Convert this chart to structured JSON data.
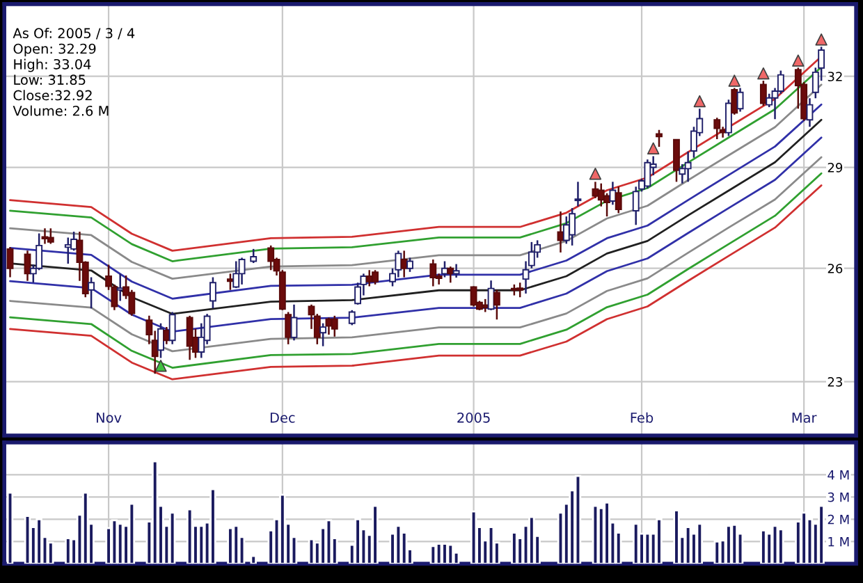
{
  "chart_data": [
    {
      "type": "candlestick",
      "x": [
        "2004-10-15",
        "2004-10-18",
        "2004-10-19",
        "2004-10-20",
        "2004-10-21",
        "2004-10-22",
        "2004-10-25",
        "2004-10-26",
        "2004-10-27",
        "2004-10-28",
        "2004-10-29",
        "2004-11-01",
        "2004-11-02",
        "2004-11-03",
        "2004-11-04",
        "2004-11-05",
        "2004-11-08",
        "2004-11-09",
        "2004-11-10",
        "2004-11-11",
        "2004-11-12",
        "2004-11-15",
        "2004-11-16",
        "2004-11-17",
        "2004-11-18",
        "2004-11-19",
        "2004-11-22",
        "2004-11-23",
        "2004-11-24",
        "2004-11-26",
        "2004-11-29",
        "2004-11-30",
        "2004-12-01",
        "2004-12-02",
        "2004-12-03",
        "2004-12-06",
        "2004-12-07",
        "2004-12-08",
        "2004-12-09",
        "2004-12-10",
        "2004-12-13",
        "2004-12-14",
        "2004-12-15",
        "2004-12-16",
        "2004-12-17",
        "2004-12-20",
        "2004-12-21",
        "2004-12-22",
        "2004-12-23",
        "2004-12-27",
        "2004-12-28",
        "2004-12-29",
        "2004-12-30",
        "2004-12-31",
        "2005-01-03",
        "2005-01-04",
        "2005-01-05",
        "2005-01-06",
        "2005-01-07",
        "2005-01-10",
        "2005-01-11",
        "2005-01-12",
        "2005-01-13",
        "2005-01-14",
        "2005-01-18",
        "2005-01-19",
        "2005-01-20",
        "2005-01-21",
        "2005-01-24",
        "2005-01-25",
        "2005-01-26",
        "2005-01-27",
        "2005-01-28",
        "2005-01-31",
        "2005-02-01",
        "2005-02-02",
        "2005-02-03",
        "2005-02-04",
        "2005-02-07",
        "2005-02-08",
        "2005-02-09",
        "2005-02-10",
        "2005-02-11",
        "2005-02-14",
        "2005-02-15",
        "2005-02-16",
        "2005-02-17",
        "2005-02-18",
        "2005-02-22",
        "2005-02-23",
        "2005-02-24",
        "2005-02-25",
        "2005-02-28",
        "2005-03-01",
        "2005-03-02",
        "2005-03-03",
        "2005-03-04"
      ],
      "ohlc": [
        [
          26.55,
          26.6,
          25.75,
          26.0
        ],
        [
          26.4,
          26.5,
          25.65,
          25.85
        ],
        [
          25.85,
          26.1,
          25.6,
          26.0
        ],
        [
          26.0,
          27.0,
          25.95,
          26.65
        ],
        [
          26.9,
          27.15,
          26.7,
          26.85
        ],
        [
          26.88,
          27.15,
          26.7,
          26.75
        ],
        [
          26.6,
          26.88,
          26.13,
          26.67
        ],
        [
          26.55,
          27.05,
          26.5,
          26.83
        ],
        [
          26.8,
          27.05,
          25.65,
          26.17
        ],
        [
          26.17,
          26.2,
          25.2,
          25.3
        ],
        [
          25.4,
          25.75,
          24.9,
          25.6
        ],
        [
          25.78,
          26.1,
          25.4,
          25.5
        ],
        [
          25.48,
          25.55,
          24.85,
          24.95
        ],
        [
          25.4,
          25.85,
          25.1,
          25.45
        ],
        [
          25.48,
          25.8,
          25.15,
          25.25
        ],
        [
          25.33,
          25.4,
          24.7,
          24.76
        ],
        [
          24.58,
          24.7,
          23.95,
          24.2
        ],
        [
          24.05,
          24.3,
          23.2,
          23.64
        ],
        [
          23.8,
          24.5,
          23.6,
          24.35
        ],
        [
          24.31,
          24.4,
          23.95,
          24.05
        ],
        [
          24.05,
          24.8,
          23.95,
          24.73
        ],
        [
          24.65,
          24.7,
          23.55,
          23.9
        ],
        [
          24.13,
          24.35,
          23.6,
          23.75
        ],
        [
          23.75,
          24.5,
          23.6,
          24.13
        ],
        [
          24.05,
          24.75,
          23.95,
          24.69
        ],
        [
          25.1,
          25.75,
          24.9,
          25.6
        ],
        [
          25.7,
          25.85,
          25.4,
          25.64
        ],
        [
          25.48,
          26.2,
          25.45,
          25.85
        ],
        [
          25.85,
          26.3,
          25.55,
          26.25
        ],
        [
          26.2,
          26.55,
          26.15,
          26.33
        ],
        [
          26.58,
          26.65,
          25.95,
          26.2
        ],
        [
          26.25,
          26.3,
          25.8,
          25.93
        ],
        [
          25.89,
          25.95,
          24.85,
          24.88
        ],
        [
          24.73,
          24.8,
          23.95,
          24.13
        ],
        [
          24.13,
          25.0,
          24.05,
          24.65
        ],
        [
          24.95,
          25.0,
          24.35,
          24.73
        ],
        [
          24.69,
          24.75,
          23.95,
          24.13
        ],
        [
          24.25,
          24.5,
          23.9,
          24.4
        ],
        [
          24.61,
          24.65,
          24.2,
          24.43
        ],
        [
          24.61,
          24.7,
          24.15,
          24.35
        ],
        [
          24.5,
          24.85,
          24.45,
          24.8
        ],
        [
          25.03,
          25.6,
          25.0,
          25.48
        ],
        [
          25.55,
          25.85,
          25.25,
          25.78
        ],
        [
          25.78,
          25.95,
          25.5,
          25.63
        ],
        [
          25.89,
          25.95,
          25.55,
          25.63
        ],
        [
          25.63,
          26.0,
          25.5,
          25.85
        ],
        [
          25.96,
          26.5,
          25.75,
          26.42
        ],
        [
          26.25,
          26.5,
          25.75,
          26.0
        ],
        [
          26.0,
          26.3,
          25.9,
          26.2
        ],
        [
          26.12,
          26.25,
          25.5,
          25.74
        ],
        [
          25.78,
          25.85,
          25.55,
          25.72
        ],
        [
          25.85,
          26.2,
          25.75,
          26.0
        ],
        [
          26.0,
          26.05,
          25.6,
          25.85
        ],
        [
          25.85,
          26.12,
          25.74,
          25.93
        ],
        [
          25.48,
          25.5,
          24.95,
          24.99
        ],
        [
          25.06,
          25.1,
          24.85,
          24.88
        ],
        [
          24.99,
          25.15,
          24.8,
          24.92
        ],
        [
          24.88,
          25.66,
          24.85,
          25.44
        ],
        [
          25.33,
          25.4,
          24.6,
          24.99
        ],
        [
          25.44,
          25.55,
          25.25,
          25.4
        ],
        [
          25.45,
          25.6,
          25.2,
          25.4
        ],
        [
          25.7,
          26.2,
          25.3,
          25.96
        ],
        [
          26.08,
          26.75,
          26.0,
          26.46
        ],
        [
          26.46,
          26.8,
          26.3,
          26.67
        ],
        [
          27.04,
          27.65,
          26.45,
          26.8
        ],
        [
          26.8,
          27.5,
          26.7,
          27.25
        ],
        [
          26.96,
          27.75,
          26.65,
          27.58
        ],
        [
          27.98,
          28.55,
          27.8,
          28.02
        ],
        [
          28.33,
          28.55,
          28.05,
          28.12
        ],
        [
          28.29,
          28.5,
          27.8,
          28.0
        ],
        [
          28.12,
          28.2,
          27.5,
          27.92
        ],
        [
          27.96,
          28.55,
          27.85,
          28.29
        ],
        [
          28.21,
          28.4,
          27.6,
          27.71
        ],
        [
          27.67,
          28.4,
          27.25,
          28.25
        ],
        [
          28.33,
          28.65,
          28.25,
          28.58
        ],
        [
          28.42,
          29.25,
          28.35,
          29.15
        ],
        [
          29.0,
          29.35,
          28.75,
          29.1
        ],
        [
          30.07,
          30.2,
          29.65,
          29.98
        ],
        [
          29.88,
          29.9,
          28.55,
          28.91
        ],
        [
          28.79,
          29.1,
          28.5,
          28.96
        ],
        [
          28.96,
          29.5,
          28.55,
          29.15
        ],
        [
          29.52,
          30.3,
          29.3,
          30.16
        ],
        [
          30.11,
          30.9,
          30.0,
          30.57
        ],
        [
          30.53,
          30.6,
          29.9,
          30.25
        ],
        [
          30.2,
          30.3,
          29.95,
          30.11
        ],
        [
          30.11,
          31.2,
          30.0,
          31.08
        ],
        [
          31.54,
          31.6,
          30.7,
          30.76
        ],
        [
          30.9,
          31.6,
          30.8,
          31.45
        ],
        [
          31.72,
          31.85,
          31.0,
          31.08
        ],
        [
          31.03,
          31.4,
          30.95,
          31.26
        ],
        [
          31.26,
          31.6,
          30.55,
          31.49
        ],
        [
          31.49,
          32.2,
          31.4,
          32.05
        ],
        [
          32.23,
          32.3,
          30.9,
          31.68
        ],
        [
          31.72,
          31.8,
          30.5,
          30.57
        ],
        [
          30.53,
          31.25,
          30.3,
          31.03
        ],
        [
          31.45,
          32.3,
          31.25,
          32.14
        ],
        [
          32.29,
          33.04,
          31.85,
          32.92
        ]
      ],
      "series": [
        {
          "type": "line",
          "color": "#d03030",
          "x": [
            "2004-10-15",
            "2004-10-29",
            "2004-11-05",
            "2004-11-12",
            "2004-11-29",
            "2004-12-13",
            "2004-12-28",
            "2005-01-11",
            "2005-01-19",
            "2005-01-26",
            "2005-02-02",
            "2005-02-09",
            "2005-02-16",
            "2005-02-24",
            "2005-03-04"
          ],
          "values": [
            27.99,
            27.78,
            26.99,
            26.5,
            26.86,
            26.9,
            27.19,
            27.19,
            27.61,
            28.29,
            28.68,
            29.48,
            30.29,
            31.23,
            32.69
          ]
        },
        {
          "type": "line",
          "color": "#30a030",
          "x": [
            "2004-10-15",
            "2004-10-29",
            "2004-11-05",
            "2004-11-12",
            "2004-11-29",
            "2004-12-13",
            "2004-12-28",
            "2005-01-11",
            "2005-01-19",
            "2005-01-26",
            "2005-02-02",
            "2005-02-09",
            "2005-02-16",
            "2005-02-24",
            "2005-03-04"
          ],
          "values": [
            27.67,
            27.47,
            26.69,
            26.2,
            26.56,
            26.6,
            26.88,
            26.88,
            27.3,
            27.97,
            28.36,
            29.15,
            29.95,
            30.88,
            32.32
          ]
        },
        {
          "type": "line",
          "color": "#8a8a8a",
          "x": [
            "2004-10-15",
            "2004-10-29",
            "2004-11-05",
            "2004-11-12",
            "2004-11-29",
            "2004-12-13",
            "2004-12-28",
            "2005-01-11",
            "2005-01-19",
            "2005-01-26",
            "2005-02-02",
            "2005-02-09",
            "2005-02-16",
            "2005-02-24",
            "2005-03-04"
          ],
          "values": [
            27.15,
            26.95,
            26.18,
            25.71,
            26.05,
            26.09,
            26.37,
            26.37,
            26.78,
            27.44,
            27.82,
            28.6,
            29.38,
            30.29,
            31.71
          ]
        },
        {
          "type": "line",
          "color": "#3030a8",
          "x": [
            "2004-10-15",
            "2004-10-29",
            "2004-11-05",
            "2004-11-12",
            "2004-11-29",
            "2004-12-13",
            "2004-12-28",
            "2005-01-11",
            "2005-01-19",
            "2005-01-26",
            "2005-02-02",
            "2005-02-09",
            "2005-02-16",
            "2005-02-24",
            "2005-03-04"
          ],
          "values": [
            26.58,
            26.38,
            25.63,
            25.16,
            25.51,
            25.54,
            25.82,
            25.82,
            26.22,
            26.86,
            27.23,
            27.99,
            28.76,
            29.66,
            31.04
          ]
        },
        {
          "type": "line",
          "color": "#202020",
          "x": [
            "2004-10-15",
            "2004-10-29",
            "2004-11-05",
            "2004-11-12",
            "2004-11-29",
            "2004-12-13",
            "2004-12-28",
            "2005-01-11",
            "2005-01-19",
            "2005-01-26",
            "2005-02-02",
            "2005-02-09",
            "2005-02-16",
            "2005-02-24",
            "2005-03-04"
          ],
          "values": [
            26.14,
            25.94,
            25.2,
            24.75,
            25.08,
            25.12,
            25.39,
            25.39,
            25.78,
            26.42,
            26.78,
            27.53,
            28.28,
            29.16,
            30.53
          ]
        },
        {
          "type": "line",
          "color": "#3030a8",
          "x": [
            "2004-10-15",
            "2004-10-29",
            "2004-11-05",
            "2004-11-12",
            "2004-11-29",
            "2004-12-13",
            "2004-12-28",
            "2005-01-11",
            "2005-01-19",
            "2005-01-26",
            "2005-02-02",
            "2005-02-09",
            "2005-02-16",
            "2005-02-24",
            "2005-03-04"
          ],
          "values": [
            25.64,
            25.45,
            24.73,
            24.28,
            24.61,
            24.65,
            24.91,
            24.91,
            25.3,
            25.92,
            26.28,
            27.01,
            27.75,
            28.61,
            29.95
          ]
        },
        {
          "type": "line",
          "color": "#8a8a8a",
          "x": [
            "2004-10-15",
            "2004-10-29",
            "2004-11-05",
            "2004-11-12",
            "2004-11-29",
            "2004-12-13",
            "2004-12-28",
            "2005-01-11",
            "2005-01-19",
            "2005-01-26",
            "2005-02-02",
            "2005-02-09",
            "2005-02-16",
            "2005-02-24",
            "2005-03-04"
          ],
          "values": [
            25.1,
            24.92,
            24.21,
            23.77,
            24.09,
            24.13,
            24.39,
            24.39,
            24.76,
            25.37,
            25.72,
            26.44,
            27.17,
            28.01,
            29.32
          ]
        },
        {
          "type": "line",
          "color": "#30a030",
          "x": [
            "2004-10-15",
            "2004-10-29",
            "2004-11-05",
            "2004-11-12",
            "2004-11-29",
            "2004-12-13",
            "2004-12-28",
            "2005-01-11",
            "2005-01-19",
            "2005-01-26",
            "2005-02-02",
            "2005-02-09",
            "2005-02-16",
            "2005-02-24",
            "2005-03-04"
          ],
          "values": [
            24.66,
            24.48,
            23.78,
            23.35,
            23.67,
            23.7,
            23.96,
            23.96,
            24.33,
            24.93,
            25.27,
            25.98,
            26.69,
            27.52,
            28.81
          ]
        },
        {
          "type": "line",
          "color": "#d03030",
          "x": [
            "2004-10-15",
            "2004-10-29",
            "2004-11-05",
            "2004-11-12",
            "2004-11-29",
            "2004-12-13",
            "2004-12-28",
            "2005-01-11",
            "2005-01-19",
            "2005-01-26",
            "2005-02-02",
            "2005-02-09",
            "2005-02-16",
            "2005-02-24",
            "2005-03-04"
          ],
          "values": [
            24.35,
            24.17,
            23.48,
            23.06,
            23.37,
            23.4,
            23.66,
            23.66,
            24.02,
            24.61,
            24.95,
            25.65,
            26.35,
            27.17,
            28.44
          ]
        },
        {
          "type": "scatter",
          "marker": "triangle",
          "color": "#40c040",
          "x": [
            "2004-11-10"
          ],
          "values": [
            23.4
          ]
        },
        {
          "type": "scatter",
          "marker": "triangle",
          "color": "#f06868",
          "x": [
            "2005-01-24",
            "2005-02-03",
            "2005-02-11",
            "2005-02-17",
            "2005-02-22",
            "2005-02-28",
            "2005-03-04"
          ],
          "values": [
            28.8,
            29.6,
            31.15,
            31.85,
            32.1,
            32.55,
            33.3
          ]
        }
      ],
      "xlim": [
        "2004-10-14",
        "2005-03-10"
      ],
      "xticks": [
        {
          "value": "2004-11-01",
          "label": "Nov"
        },
        {
          "value": "2004-12-01",
          "label": "Dec"
        },
        {
          "value": "2005-01-03",
          "label": "2005"
        },
        {
          "value": "2005-02-01",
          "label": "Feb"
        },
        {
          "value": "2005-03-01",
          "label": "Mar"
        }
      ],
      "log": true,
      "ylim": [
        21.7,
        34.6
      ],
      "yticks": [
        23,
        26,
        29,
        32
      ],
      "grid": true,
      "annotations": [
        "As Of: 2005 / 3 / 4",
        "Open: 32.29",
        "High: 33.04",
        "Low: 31.85",
        "Close:32.92",
        "Volume: 2.6 M"
      ]
    },
    {
      "type": "bar",
      "color": "#1a1a5e",
      "x": [
        "2004-10-15",
        "2004-10-18",
        "2004-10-19",
        "2004-10-20",
        "2004-10-21",
        "2004-10-22",
        "2004-10-25",
        "2004-10-26",
        "2004-10-27",
        "2004-10-28",
        "2004-10-29",
        "2004-11-01",
        "2004-11-02",
        "2004-11-03",
        "2004-11-04",
        "2004-11-05",
        "2004-11-08",
        "2004-11-09",
        "2004-11-10",
        "2004-11-11",
        "2004-11-12",
        "2004-11-15",
        "2004-11-16",
        "2004-11-17",
        "2004-11-18",
        "2004-11-19",
        "2004-11-22",
        "2004-11-23",
        "2004-11-24",
        "2004-11-26",
        "2004-11-29",
        "2004-11-30",
        "2004-12-01",
        "2004-12-02",
        "2004-12-03",
        "2004-12-06",
        "2004-12-07",
        "2004-12-08",
        "2004-12-09",
        "2004-12-10",
        "2004-12-13",
        "2004-12-14",
        "2004-12-15",
        "2004-12-16",
        "2004-12-17",
        "2004-12-20",
        "2004-12-21",
        "2004-12-22",
        "2004-12-23",
        "2004-12-27",
        "2004-12-28",
        "2004-12-29",
        "2004-12-30",
        "2004-12-31",
        "2005-01-03",
        "2005-01-04",
        "2005-01-05",
        "2005-01-06",
        "2005-01-07",
        "2005-01-10",
        "2005-01-11",
        "2005-01-12",
        "2005-01-13",
        "2005-01-14",
        "2005-01-18",
        "2005-01-19",
        "2005-01-20",
        "2005-01-21",
        "2005-01-24",
        "2005-01-25",
        "2005-01-26",
        "2005-01-27",
        "2005-01-28",
        "2005-01-31",
        "2005-02-01",
        "2005-02-02",
        "2005-02-03",
        "2005-02-04",
        "2005-02-07",
        "2005-02-08",
        "2005-02-09",
        "2005-02-10",
        "2005-02-11",
        "2005-02-14",
        "2005-02-15",
        "2005-02-16",
        "2005-02-17",
        "2005-02-18",
        "2005-02-22",
        "2005-02-23",
        "2005-02-24",
        "2005-02-25",
        "2005-02-28",
        "2005-03-01",
        "2005-03-02",
        "2005-03-03",
        "2005-03-04"
      ],
      "values": [
        3.2,
        2.15,
        1.65,
        2.0,
        1.2,
        0.95,
        1.15,
        1.1,
        2.2,
        3.2,
        1.8,
        1.6,
        1.95,
        1.8,
        1.7,
        2.7,
        1.9,
        4.6,
        2.6,
        1.7,
        2.3,
        2.45,
        1.7,
        1.7,
        1.85,
        3.35,
        1.6,
        1.7,
        1.2,
        0.35,
        1.5,
        2.0,
        3.1,
        1.8,
        1.2,
        1.1,
        0.95,
        1.6,
        1.95,
        1.15,
        0.85,
        2.0,
        1.55,
        1.3,
        2.6,
        1.35,
        1.7,
        1.4,
        0.65,
        0.8,
        0.9,
        0.9,
        0.85,
        0.5,
        2.35,
        1.65,
        1.05,
        1.65,
        0.95,
        1.4,
        1.15,
        1.7,
        2.1,
        1.25,
        2.3,
        2.7,
        3.3,
        3.95,
        2.6,
        2.5,
        2.75,
        1.85,
        1.4,
        1.8,
        1.35,
        1.35,
        1.35,
        2.0,
        2.4,
        1.2,
        1.65,
        1.35,
        1.8,
        1.0,
        1.05,
        1.7,
        1.75,
        1.35,
        1.5,
        1.35,
        1.7,
        1.55,
        1.9,
        2.3,
        2.0,
        1.8,
        2.6
      ],
      "xlim": [
        "2004-10-14",
        "2005-03-10"
      ],
      "xticks": [
        {
          "value": "2004-11-01",
          "label": null
        },
        {
          "value": "2004-12-01",
          "label": null
        },
        {
          "value": "2005-01-03",
          "label": null
        },
        {
          "value": "2005-02-01",
          "label": null
        },
        {
          "value": "2005-03-01",
          "label": null
        }
      ],
      "ylim": [
        0,
        5.45
      ],
      "yticks": [
        {
          "value": 1,
          "label": "1 M"
        },
        {
          "value": 2,
          "label": "2 M"
        },
        {
          "value": 3,
          "label": "3 M"
        },
        {
          "value": 4,
          "label": "4 M"
        }
      ],
      "grid": true,
      "tick_labels": "y"
    }
  ]
}
